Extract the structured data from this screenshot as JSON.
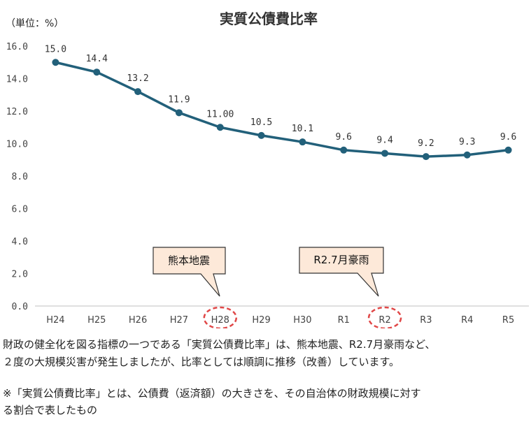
{
  "chart_data": {
    "type": "line",
    "title": "実質公債費比率",
    "unit_label": "（単位：%）",
    "categories": [
      "H24",
      "H25",
      "H26",
      "H27",
      "H28",
      "H29",
      "H30",
      "R1",
      "R2",
      "R3",
      "R4",
      "R5"
    ],
    "series": [
      {
        "values": [
          15.0,
          14.4,
          13.2,
          11.9,
          11.0,
          10.5,
          10.1,
          9.6,
          9.4,
          9.2,
          9.3,
          9.6
        ],
        "value_labels": [
          "15.0",
          "14.4",
          "13.2",
          "11.9",
          "11.00",
          "10.5",
          "10.1",
          "9.6",
          "9.4",
          "9.2",
          "9.3",
          "9.6"
        ],
        "color": "#22607a"
      }
    ],
    "ylim": [
      0,
      16
    ],
    "yticks": [
      "0.0",
      "2.0",
      "4.0",
      "6.0",
      "8.0",
      "10.0",
      "12.0",
      "14.0",
      "16.0"
    ],
    "grid": false,
    "annotations": [
      {
        "text": "熊本地震",
        "target": "H28"
      },
      {
        "text": "R2.7月豪雨",
        "target": "R2"
      }
    ],
    "highlight_color": "#e04848",
    "callout_fill": "#fde9d9"
  },
  "text": {
    "paragraph1_line1": "財政の健全化を図る指標の一つである「実質公債費比率」は、熊本地震、R2.7月豪雨など、",
    "paragraph1_line2": "２度の大規模災害が発生しましたが、比率としては順調に推移（改善）しています。",
    "note_line1": "※「実質公債費比率」とは、公債費（返済額）の大きさを、その自治体の財政規模に対す",
    "note_line2": "る割合で表したもの"
  }
}
